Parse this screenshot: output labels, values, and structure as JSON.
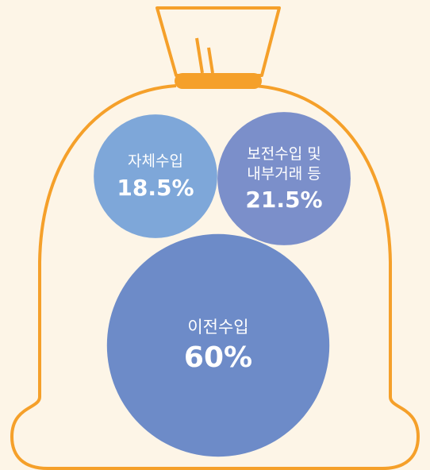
{
  "chart_data": {
    "type": "bubble",
    "categories": [
      "자체수입",
      "보전수입 및\n내부거래 등",
      "이전수입"
    ],
    "values": [
      18.5,
      21.5,
      60
    ],
    "value_labels": [
      "18.5%",
      "21.5%",
      "60%"
    ],
    "colors": [
      "#7ea7d9",
      "#7b8fca",
      "#6d8bc8"
    ]
  }
}
